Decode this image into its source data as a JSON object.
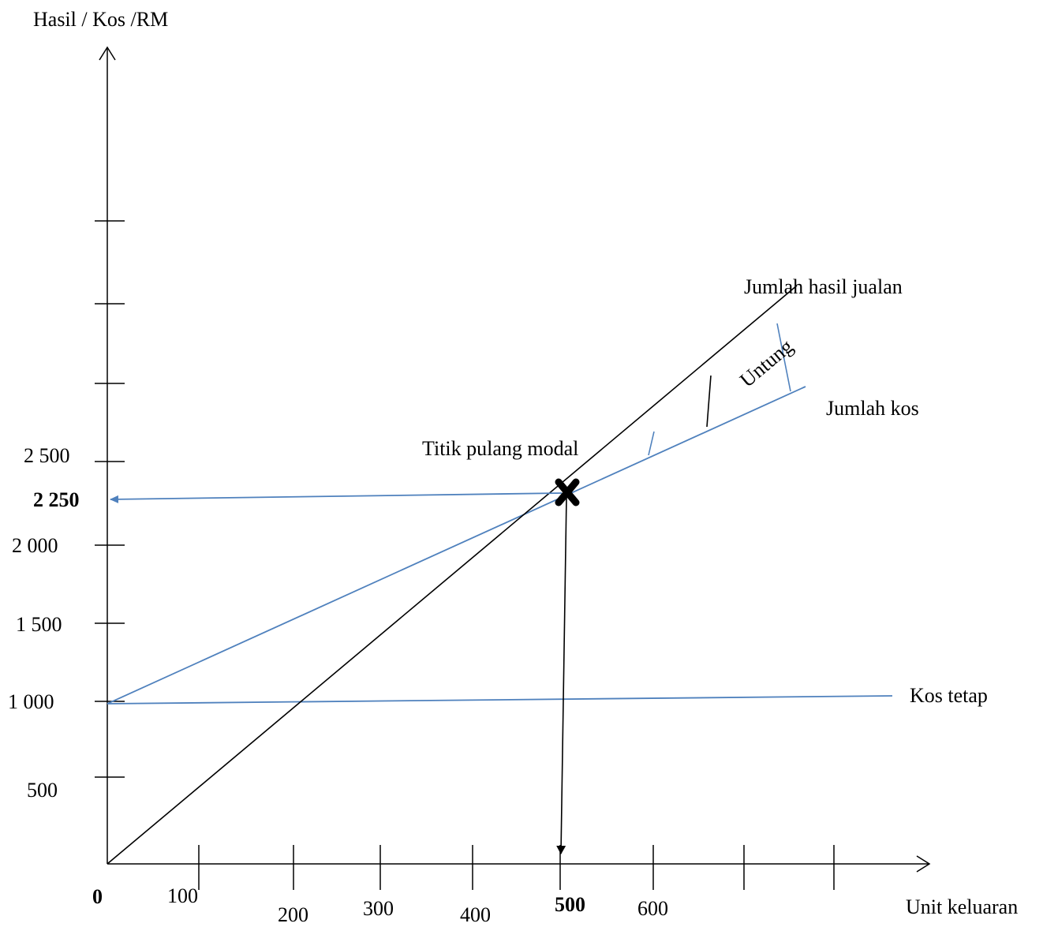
{
  "chart_data": {
    "type": "line",
    "title": "",
    "ylabel": "Hasil / Kos /RM",
    "xlabel": "Unit keluaran",
    "x_ticks": [
      "100",
      "200",
      "300",
      "400",
      "500",
      "600"
    ],
    "x_origin_label": "0",
    "y_ticks": [
      "500",
      "1 000",
      "1 500",
      "2 000",
      "2 500"
    ],
    "xlim": [
      0,
      900
    ],
    "ylim": [
      0,
      5250
    ],
    "series": [
      {
        "name": "Jumlah hasil jualan",
        "color": "#000000",
        "x": [
          0,
          780
        ],
        "y": [
          0,
          3480
        ]
      },
      {
        "name": "Jumlah kos",
        "color": "#4f81bd",
        "x": [
          0,
          800
        ],
        "y": [
          1000,
          3000
        ]
      },
      {
        "name": "Kos tetap",
        "color": "#4f81bd",
        "x": [
          0,
          900
        ],
        "y": [
          1000,
          1040
        ]
      }
    ],
    "annotations": {
      "break_even_label": "Titik pulang modal",
      "break_even_value_label": "2 250",
      "break_even_unit_label": "500",
      "break_even": {
        "x": 500,
        "y": 2250
      },
      "profit_label": "Untung"
    }
  }
}
